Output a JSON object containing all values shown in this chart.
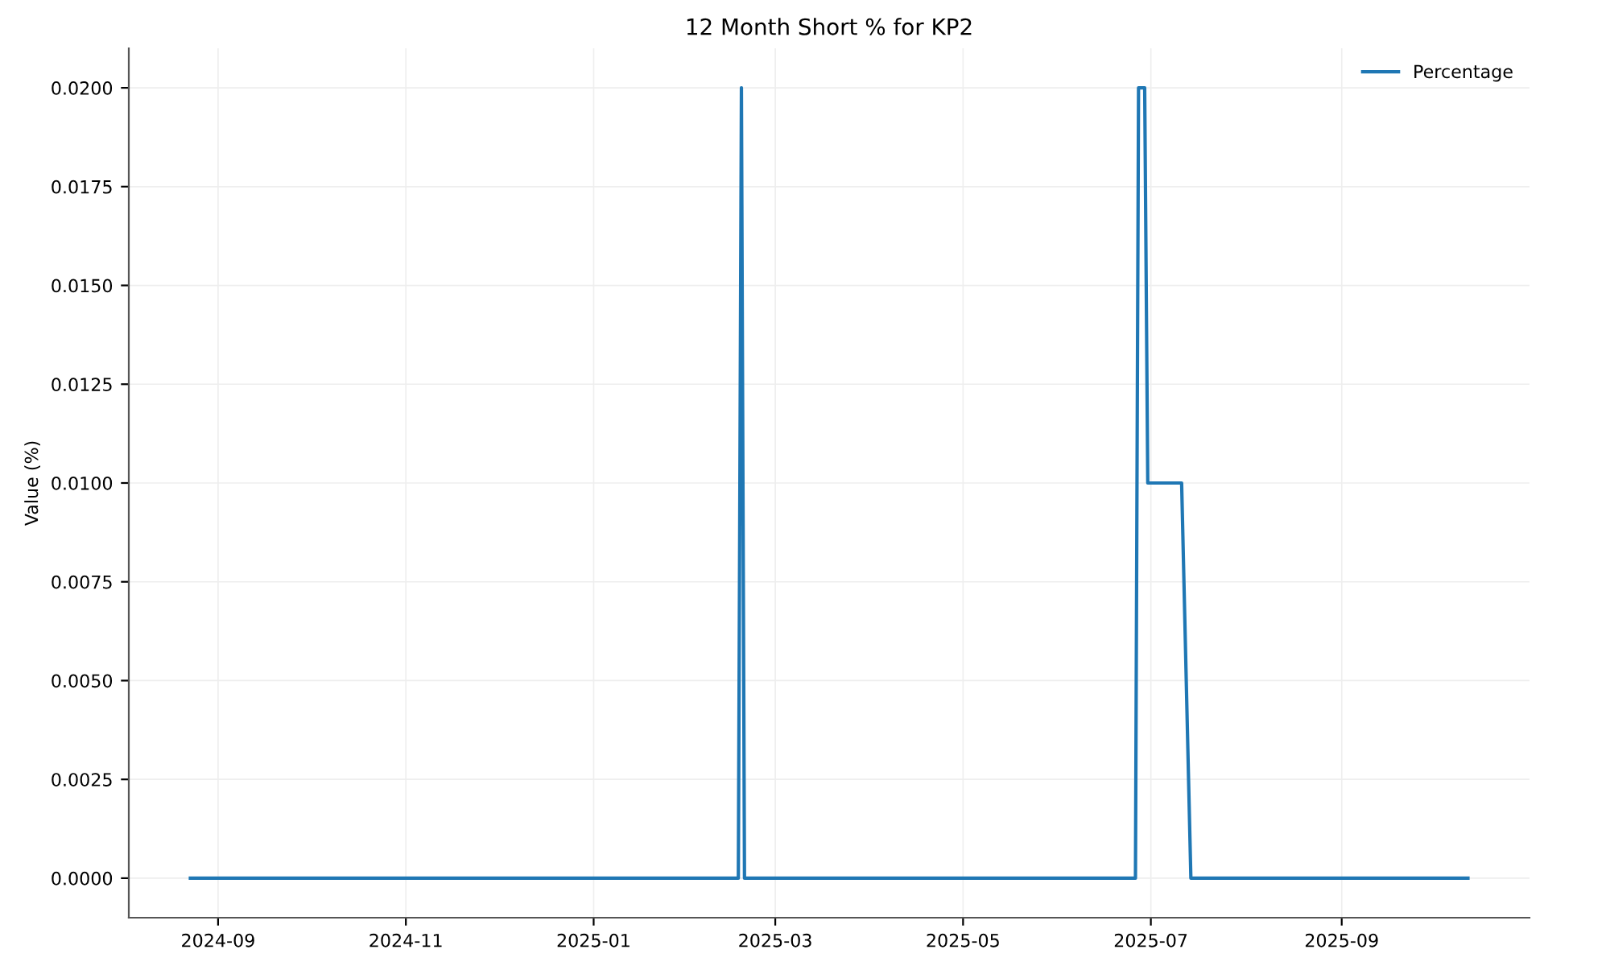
{
  "chart_data": {
    "type": "line",
    "title": "12 Month Short % for KP2",
    "ylabel": "Value (%)",
    "x": [
      "2024-08-23",
      "2025-02-17",
      "2025-02-18",
      "2025-02-19",
      "2025-06-26",
      "2025-06-27",
      "2025-06-29",
      "2025-06-30",
      "2025-07-11",
      "2025-07-14",
      "2025-10-12"
    ],
    "series": [
      {
        "name": "Percentage",
        "color": "#1f77b4",
        "values": [
          0,
          0,
          0.02,
          0,
          0,
          0.02,
          0.02,
          0.01,
          0.01,
          0,
          0
        ]
      }
    ],
    "xlim": [
      "2024-08-03",
      "2025-11-01"
    ],
    "xticks": [
      {
        "value": "2024-09-01",
        "label": "2024-09"
      },
      {
        "value": "2024-11-01",
        "label": "2024-11"
      },
      {
        "value": "2025-01-01",
        "label": "2025-01"
      },
      {
        "value": "2025-03-01",
        "label": "2025-03"
      },
      {
        "value": "2025-05-01",
        "label": "2025-05"
      },
      {
        "value": "2025-07-01",
        "label": "2025-07"
      },
      {
        "value": "2025-09-01",
        "label": "2025-09"
      }
    ],
    "ylim": [
      -0.001,
      0.021
    ],
    "yticks": [
      {
        "value": 0,
        "label": "0.0000"
      },
      {
        "value": 0.0025,
        "label": "0.0025"
      },
      {
        "value": 0.005,
        "label": "0.0050"
      },
      {
        "value": 0.0075,
        "label": "0.0075"
      },
      {
        "value": 0.01,
        "label": "0.0100"
      },
      {
        "value": 0.0125,
        "label": "0.0125"
      },
      {
        "value": 0.015,
        "label": "0.0150"
      },
      {
        "value": 0.0175,
        "label": "0.0175"
      },
      {
        "value": 0.02,
        "label": "0.0200"
      }
    ],
    "grid": true,
    "legend": "top right",
    "marker": "none",
    "line_style": "solid"
  }
}
